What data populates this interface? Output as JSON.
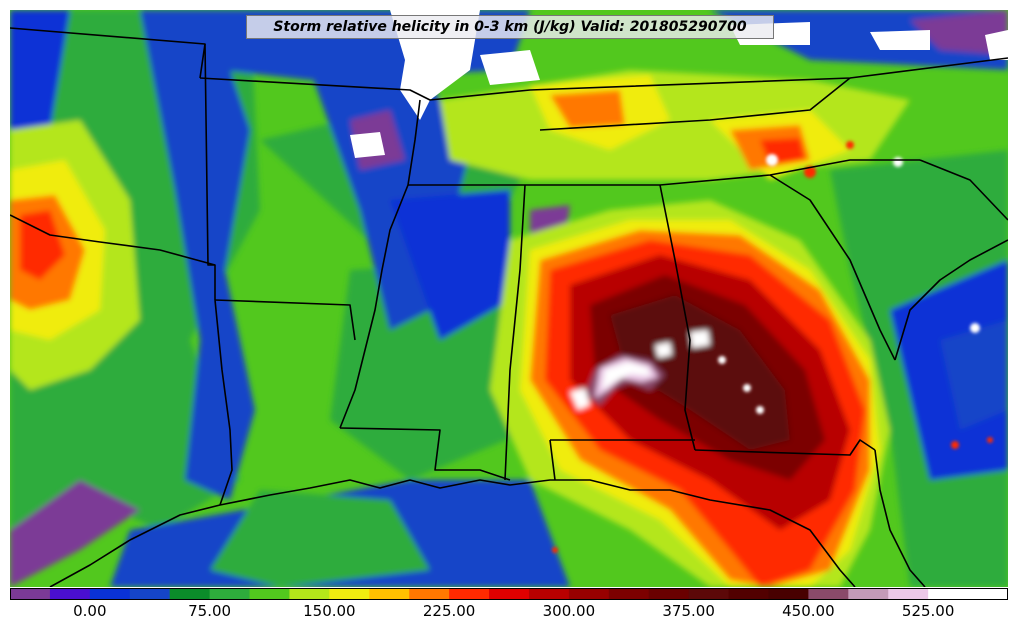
{
  "title": "Storm relative helicity in 0-3 km (J/kg) Valid: 201805290700",
  "colorbar": {
    "min": -50,
    "max": 575,
    "step": 25,
    "colors": [
      "#7b3a96",
      "#4a0fd0",
      "#0a32d6",
      "#1545c8",
      "#0b8c2a",
      "#2eac3c",
      "#52c81e",
      "#b4e61a",
      "#f0ec10",
      "#ffc000",
      "#ff7800",
      "#ff2a00",
      "#e00000",
      "#b80000",
      "#980000",
      "#7c0000",
      "#6a0000",
      "#5c0808",
      "#520000",
      "#480000",
      "#8a4a6a",
      "#c49ab8",
      "#ecc8e8",
      "#ffffff",
      "#ffffff"
    ],
    "tick_values": [
      0,
      75,
      150,
      225,
      300,
      375,
      450,
      525
    ],
    "tick_labels": [
      "0.00",
      "75.00",
      "150.00",
      "225.00",
      "300.00",
      "375.00",
      "450.00",
      "525.00"
    ]
  },
  "map_colors": {
    "land_base": "#52c81e",
    "outline": "#000000"
  }
}
